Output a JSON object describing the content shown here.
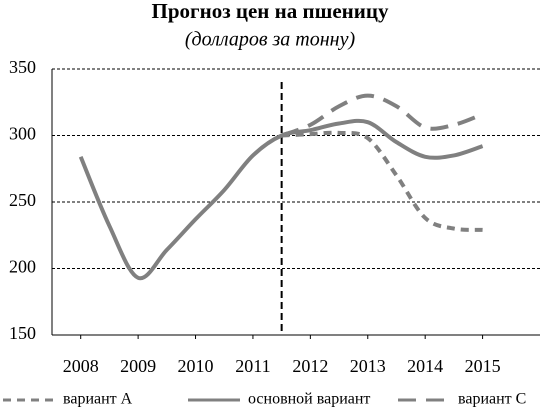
{
  "chart_data": {
    "type": "line",
    "title": "Прогноз цен на пшеницу",
    "subtitle": "(долларов за тонну)",
    "x": [
      2008,
      2008.5,
      2009,
      2009.5,
      2010,
      2010.5,
      2011,
      2011.5,
      2012,
      2012.5,
      2013,
      2013.5,
      2014,
      2014.5,
      2015
    ],
    "xlim": [
      2007.5,
      2016
    ],
    "xticks": [
      2008,
      2009,
      2010,
      2011,
      2012,
      2013,
      2014,
      2015
    ],
    "ylim": [
      150,
      350
    ],
    "yticks": [
      150,
      200,
      250,
      300,
      350
    ],
    "grid": true,
    "vline": 2011.5,
    "legend": "bottom",
    "series": [
      {
        "name": "вариант A",
        "color": "#808080",
        "dash": "short",
        "values": [
          null,
          null,
          null,
          null,
          null,
          null,
          null,
          300,
          301,
          302,
          298,
          270,
          238,
          230,
          229
        ]
      },
      {
        "name": "основной вариант",
        "color": "#808080",
        "dash": "solid",
        "values": [
          284,
          232,
          193,
          214,
          237,
          259,
          285,
          300,
          304,
          309,
          310,
          295,
          284,
          285,
          292
        ]
      },
      {
        "name": "вариант C",
        "color": "#808080",
        "dash": "long",
        "values": [
          null,
          null,
          null,
          null,
          null,
          null,
          null,
          300,
          308,
          322,
          330,
          322,
          306,
          308,
          316
        ]
      }
    ]
  }
}
